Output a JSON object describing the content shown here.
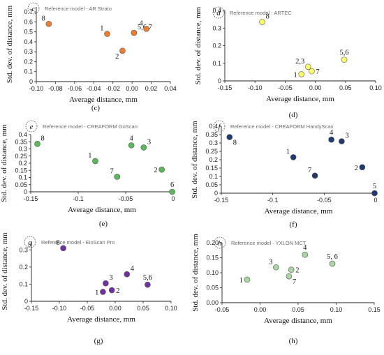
{
  "figure": {
    "panels": [
      {
        "letter": "c",
        "caption": "(c)"
      },
      {
        "letter": "d",
        "caption": "(d)"
      },
      {
        "letter": "e",
        "caption": "(e)"
      },
      {
        "letter": "f",
        "caption": "(f)"
      },
      {
        "letter": "g",
        "caption": "(g)"
      },
      {
        "letter": "h",
        "caption": "(h)"
      }
    ]
  },
  "chart_data": [
    {
      "type": "scatter",
      "title": "Reference model - AR Strato",
      "xlabel": "Average distance, mm",
      "ylabel": "Std. dev. of distance, mm",
      "xlim": [
        -0.1,
        0.04
      ],
      "ylim": [
        0,
        0.75
      ],
      "xticks": [
        -0.1,
        -0.08,
        -0.06,
        -0.04,
        -0.02,
        0,
        0.02,
        0.04
      ],
      "xtick_labels": [
        "-0.10",
        "-0.08",
        "-0.06",
        "-0.04",
        "-0.02",
        "0.00",
        "0.02",
        "0.04"
      ],
      "yticks": [
        0,
        0.1,
        0.2,
        0.3,
        0.4,
        0.5,
        0.6,
        0.7
      ],
      "ytick_labels": [
        "0",
        "0.1",
        "0.2",
        "0.3",
        "0.4",
        "0.5",
        "0.6",
        "0.7"
      ],
      "marker_color": "#ED7D31",
      "points": [
        {
          "label": "8",
          "x": -0.087,
          "y": 0.58
        },
        {
          "label": "1",
          "x": -0.026,
          "y": 0.48
        },
        {
          "label": "2",
          "x": -0.01,
          "y": 0.31
        },
        {
          "label": "5,6,7",
          "x": 0.002,
          "y": 0.49
        },
        {
          "label": "4",
          "x": 0.015,
          "y": 0.53
        }
      ]
    },
    {
      "type": "scatter",
      "title": "Reference model - ARTEC",
      "xlabel": "Average distance, mm",
      "ylabel": "Std. dev. of distance, mm",
      "xlim": [
        -0.15,
        0.1
      ],
      "ylim": [
        0,
        0.4
      ],
      "xticks": [
        -0.15,
        -0.1,
        -0.05,
        0,
        0.05,
        0.1
      ],
      "xtick_labels": [
        "-0.15",
        "-0.10",
        "-0.05",
        "0.00",
        "0.05",
        "0.10"
      ],
      "yticks": [
        0,
        0.1,
        0.2,
        0.3,
        0.4
      ],
      "ytick_labels": [
        "0",
        "0.1",
        "0.2",
        "0.3",
        "0.4"
      ],
      "marker_color": "#FFFF66",
      "points": [
        {
          "label": "8",
          "x": -0.088,
          "y": 0.335
        },
        {
          "label": "1",
          "x": -0.023,
          "y": 0.038
        },
        {
          "label": "2,3",
          "x": -0.012,
          "y": 0.08
        },
        {
          "label": "7",
          "x": -0.006,
          "y": 0.055
        },
        {
          "label": "5,6",
          "x": 0.048,
          "y": 0.12
        }
      ]
    },
    {
      "type": "scatter",
      "title": "Reference model - CREAFORM GoScan",
      "xlabel": "Average distance, mm",
      "ylabel": "Std. dev. of distance, mm",
      "xlim": [
        -0.15,
        0
      ],
      "ylim": [
        0,
        0.4
      ],
      "xticks": [
        -0.15,
        -0.1,
        -0.05,
        0
      ],
      "xtick_labels": [
        "-0.15",
        "-0.1",
        "-0.05",
        "0"
      ],
      "yticks": [
        0,
        0.05,
        0.1,
        0.15,
        0.2,
        0.25,
        0.3,
        0.35,
        0.4
      ],
      "ytick_labels": [
        "0",
        "0.05",
        "0.1",
        "0.15",
        "0.2",
        "0.25",
        "0.3",
        "0.35",
        "0.4"
      ],
      "marker_color": "#5CB85C",
      "points": [
        {
          "label": "8",
          "x": -0.143,
          "y": 0.335
        },
        {
          "label": "1",
          "x": -0.082,
          "y": 0.215
        },
        {
          "label": "7",
          "x": -0.059,
          "y": 0.105
        },
        {
          "label": "4",
          "x": -0.044,
          "y": 0.325
        },
        {
          "label": "3",
          "x": -0.031,
          "y": 0.31
        },
        {
          "label": "2",
          "x": -0.012,
          "y": 0.155
        },
        {
          "label": "6",
          "x": -0.001,
          "y": 0.0
        }
      ]
    },
    {
      "type": "scatter",
      "title": "Reference model - CREAFORM HandyScan",
      "xlabel": "Average distance, mm",
      "ylabel": "Std. dev. of distance, mm",
      "xlim": [
        -0.15,
        0
      ],
      "ylim": [
        0,
        0.4
      ],
      "xticks": [
        -0.15,
        -0.1,
        -0.05,
        0
      ],
      "xtick_labels": [
        "-0.15",
        "-0.1",
        "-0.05",
        "0"
      ],
      "yticks": [
        0,
        0.05,
        0.1,
        0.15,
        0.2,
        0.25,
        0.3,
        0.35,
        0.4
      ],
      "ytick_labels": [
        "0",
        "0.05",
        "0.1",
        "0.15",
        "0.2",
        "0.25",
        "0.3",
        "0.35",
        "0.4"
      ],
      "marker_color": "#1F3A6E",
      "points": [
        {
          "label": "8",
          "x": -0.142,
          "y": 0.335
        },
        {
          "label": "1",
          "x": -0.08,
          "y": 0.215
        },
        {
          "label": "7",
          "x": -0.059,
          "y": 0.105
        },
        {
          "label": "4",
          "x": -0.043,
          "y": 0.32
        },
        {
          "label": "3",
          "x": -0.033,
          "y": 0.31
        },
        {
          "label": "2",
          "x": -0.013,
          "y": 0.155
        },
        {
          "label": "5",
          "x": -0.001,
          "y": 0.0
        }
      ]
    },
    {
      "type": "scatter",
      "title": "Reference model - EinScan Pro",
      "xlabel": "Average distance, mm",
      "ylabel": "Std. dev. of distance, mm",
      "xlim": [
        -0.15,
        0.1
      ],
      "ylim": [
        0,
        0.35
      ],
      "xticks": [
        -0.15,
        -0.1,
        -0.05,
        0,
        0.05,
        0.1
      ],
      "xtick_labels": [
        "-0.15",
        "-0.10",
        "-0.05",
        "0.00",
        "0.05",
        "0.10"
      ],
      "yticks": [
        0,
        0.1,
        0.2,
        0.3
      ],
      "ytick_labels": [
        "0",
        "0.1",
        "0.2",
        "0.3"
      ],
      "marker_color": "#7030A0",
      "points": [
        {
          "label": "8",
          "x": -0.093,
          "y": 0.31
        },
        {
          "label": "1",
          "x": -0.022,
          "y": 0.055
        },
        {
          "label": "3",
          "x": -0.017,
          "y": 0.105
        },
        {
          "label": "2",
          "x": -0.006,
          "y": 0.065
        },
        {
          "label": "4",
          "x": 0.021,
          "y": 0.158
        },
        {
          "label": "5,6",
          "x": 0.058,
          "y": 0.097
        }
      ]
    },
    {
      "type": "scatter",
      "title": "Reference model -  YXLON MCT",
      "xlabel": "Average distance, mm",
      "ylabel": "Std. dev. of distance, mm",
      "xlim": [
        -0.05,
        0.15
      ],
      "ylim": [
        0,
        0.2
      ],
      "xticks": [
        -0.05,
        0,
        0.05,
        0.1,
        0.15
      ],
      "xtick_labels": [
        "-0.05",
        "0.00",
        "0.05",
        "0.10",
        "0.15"
      ],
      "yticks": [
        0,
        0.05,
        0.1,
        0.15,
        0.2
      ],
      "ytick_labels": [
        "0.00",
        "0.05",
        "0.10",
        "0.15",
        "0.20"
      ],
      "marker_color": "#A8D5A2",
      "points": [
        {
          "label": "1",
          "x": -0.017,
          "y": 0.077
        },
        {
          "label": "3",
          "x": 0.021,
          "y": 0.118
        },
        {
          "label": "7",
          "x": 0.038,
          "y": 0.088
        },
        {
          "label": "2",
          "x": 0.041,
          "y": 0.11
        },
        {
          "label": "4",
          "x": 0.059,
          "y": 0.16
        },
        {
          "label": "5, 6",
          "x": 0.095,
          "y": 0.13
        }
      ]
    }
  ]
}
